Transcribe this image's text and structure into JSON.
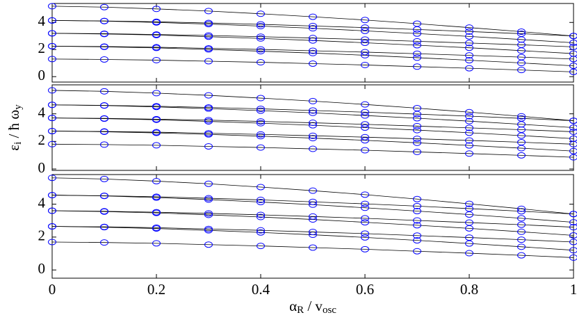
{
  "chart_data": [
    {
      "type": "line",
      "color": "#0000ff",
      "line_color": "#000000",
      "x": [
        0,
        0.1,
        0.2,
        0.3,
        0.4,
        0.5,
        0.6,
        0.7,
        0.8,
        0.9,
        1
      ],
      "xlim": [
        0,
        1
      ],
      "ylim": [
        -0.4,
        5.4
      ],
      "yticks": [
        0,
        2,
        4
      ],
      "series": [
        {
          "values": [
            1.3,
            1.27,
            1.22,
            1.14,
            1.06,
            0.96,
            0.86,
            0.74,
            0.62,
            0.49,
            0.35
          ]
        },
        {
          "values": [
            2.25,
            2.2,
            2.12,
            2.01,
            1.88,
            1.74,
            1.58,
            1.4,
            1.21,
            1.01,
            0.8
          ]
        },
        {
          "values": [
            2.25,
            2.22,
            2.17,
            2.09,
            2.01,
            1.91,
            1.81,
            1.69,
            1.57,
            1.44,
            1.3
          ]
        },
        {
          "values": [
            3.2,
            3.15,
            3.07,
            2.95,
            2.82,
            2.67,
            2.5,
            2.32,
            2.13,
            1.92,
            1.7
          ]
        },
        {
          "values": [
            3.2,
            3.17,
            3.11,
            3.04,
            2.95,
            2.85,
            2.74,
            2.61,
            2.48,
            2.35,
            2.2
          ]
        },
        {
          "values": [
            4.15,
            4.1,
            4.0,
            3.88,
            3.73,
            3.57,
            3.38,
            3.18,
            2.97,
            2.74,
            2.5
          ]
        },
        {
          "values": [
            4.15,
            4.11,
            4.05,
            3.96,
            3.86,
            3.74,
            3.62,
            3.48,
            3.33,
            3.17,
            3.0
          ]
        },
        {
          "values": [
            5.2,
            5.13,
            5.0,
            4.84,
            4.64,
            4.42,
            4.18,
            3.91,
            3.62,
            3.32,
            3.0
          ]
        }
      ]
    },
    {
      "type": "line",
      "color": "#0000ff",
      "line_color": "#000000",
      "y_label": [
        "ε",
        "i",
        " / ħ ω",
        "y"
      ],
      "x": [
        0,
        0.1,
        0.2,
        0.3,
        0.4,
        0.5,
        0.6,
        0.7,
        0.8,
        0.9,
        1
      ],
      "xlim": [
        0,
        1
      ],
      "ylim": [
        -0.1,
        6.1
      ],
      "yticks": [
        0,
        2,
        4
      ],
      "series": [
        {
          "values": [
            1.8,
            1.77,
            1.72,
            1.64,
            1.56,
            1.46,
            1.36,
            1.24,
            1.12,
            0.99,
            0.85
          ]
        },
        {
          "values": [
            2.75,
            2.7,
            2.62,
            2.51,
            2.38,
            2.24,
            2.08,
            1.9,
            1.71,
            1.51,
            1.3
          ]
        },
        {
          "values": [
            2.75,
            2.72,
            2.67,
            2.59,
            2.51,
            2.41,
            2.31,
            2.19,
            2.07,
            1.94,
            1.8
          ]
        },
        {
          "values": [
            3.7,
            3.65,
            3.57,
            3.45,
            3.32,
            3.17,
            3.0,
            2.82,
            2.63,
            2.42,
            2.2
          ]
        },
        {
          "values": [
            3.7,
            3.67,
            3.61,
            3.54,
            3.45,
            3.35,
            3.24,
            3.11,
            2.98,
            2.85,
            2.7
          ]
        },
        {
          "values": [
            4.65,
            4.6,
            4.5,
            4.38,
            4.23,
            4.07,
            3.88,
            3.68,
            3.47,
            3.24,
            3.0
          ]
        },
        {
          "values": [
            4.65,
            4.61,
            4.55,
            4.46,
            4.36,
            4.24,
            4.12,
            3.98,
            3.83,
            3.67,
            3.5
          ]
        },
        {
          "values": [
            5.7,
            5.63,
            5.5,
            5.34,
            5.14,
            4.92,
            4.68,
            4.41,
            4.12,
            3.82,
            3.5
          ]
        }
      ]
    },
    {
      "type": "line",
      "color": "#0000ff",
      "line_color": "#000000",
      "x_label": [
        "α",
        "R",
        " / v",
        "osc"
      ],
      "x": [
        0,
        0.1,
        0.2,
        0.3,
        0.4,
        0.5,
        0.6,
        0.7,
        0.8,
        0.9,
        1
      ],
      "xlim": [
        0,
        1
      ],
      "xticks": [
        0,
        0.2,
        0.4,
        0.6,
        0.8,
        1
      ],
      "ylim": [
        -0.5,
        5.8
      ],
      "yticks": [
        0,
        2,
        4
      ],
      "series": [
        {
          "values": [
            1.7,
            1.67,
            1.62,
            1.54,
            1.46,
            1.36,
            1.26,
            1.14,
            1.02,
            0.89,
            0.75
          ]
        },
        {
          "values": [
            2.65,
            2.6,
            2.52,
            2.41,
            2.28,
            2.14,
            1.98,
            1.8,
            1.61,
            1.41,
            1.2
          ]
        },
        {
          "values": [
            2.65,
            2.62,
            2.57,
            2.49,
            2.41,
            2.31,
            2.21,
            2.09,
            1.97,
            1.84,
            1.7
          ]
        },
        {
          "values": [
            3.6,
            3.55,
            3.47,
            3.35,
            3.22,
            3.07,
            2.9,
            2.72,
            2.53,
            2.32,
            2.1
          ]
        },
        {
          "values": [
            3.6,
            3.57,
            3.51,
            3.44,
            3.35,
            3.25,
            3.14,
            3.01,
            2.88,
            2.75,
            2.6
          ]
        },
        {
          "values": [
            4.55,
            4.5,
            4.4,
            4.28,
            4.13,
            3.97,
            3.78,
            3.58,
            3.37,
            3.14,
            2.9
          ]
        },
        {
          "values": [
            4.55,
            4.51,
            4.45,
            4.36,
            4.26,
            4.14,
            4.02,
            3.88,
            3.73,
            3.57,
            3.4
          ]
        },
        {
          "values": [
            5.6,
            5.53,
            5.4,
            5.24,
            5.04,
            4.82,
            4.58,
            4.31,
            4.02,
            3.72,
            3.4
          ]
        }
      ]
    }
  ]
}
